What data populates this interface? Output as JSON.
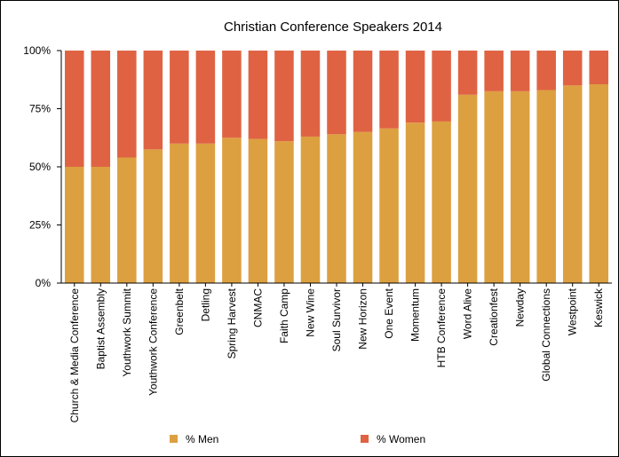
{
  "chart_data": {
    "type": "bar",
    "stacked": true,
    "percent": true,
    "title": "Christian Conference Speakers 2014",
    "xlabel": "",
    "ylabel": "",
    "ylim": [
      0,
      100
    ],
    "yticks": [
      "0%",
      "25%",
      "50%",
      "75%",
      "100%"
    ],
    "grid": false,
    "legend_position": "bottom",
    "categories": [
      "Church & Media Conference",
      "Baptist Assembly",
      "Youthwork Summit",
      "Youthwork Conference",
      "Greenbelt",
      "Detling",
      "Spring Harvest",
      "CNMAC",
      "Faith Camp",
      "New Wine",
      "Soul Survivor",
      "New Horizon",
      "One Event",
      "Momentum",
      "HTB Conference",
      "Word Alive",
      "Creationfest",
      "Newday",
      "Global Connections",
      "Westpoint",
      "Keswick"
    ],
    "series": [
      {
        "name": "% Men",
        "color": "#DDA040",
        "values": [
          50,
          50,
          54,
          57.5,
          60,
          60,
          62.5,
          62,
          61,
          63,
          64,
          65,
          66.5,
          69,
          69.5,
          81,
          82.5,
          82.5,
          83,
          85,
          85.5
        ]
      },
      {
        "name": "% Women",
        "color": "#DF6343",
        "values": [
          50,
          50,
          46,
          42.5,
          40,
          40,
          37.5,
          38,
          39,
          37,
          36,
          35,
          33.5,
          31,
          30.5,
          19,
          17.5,
          17.5,
          17,
          15,
          14.5
        ]
      }
    ]
  }
}
